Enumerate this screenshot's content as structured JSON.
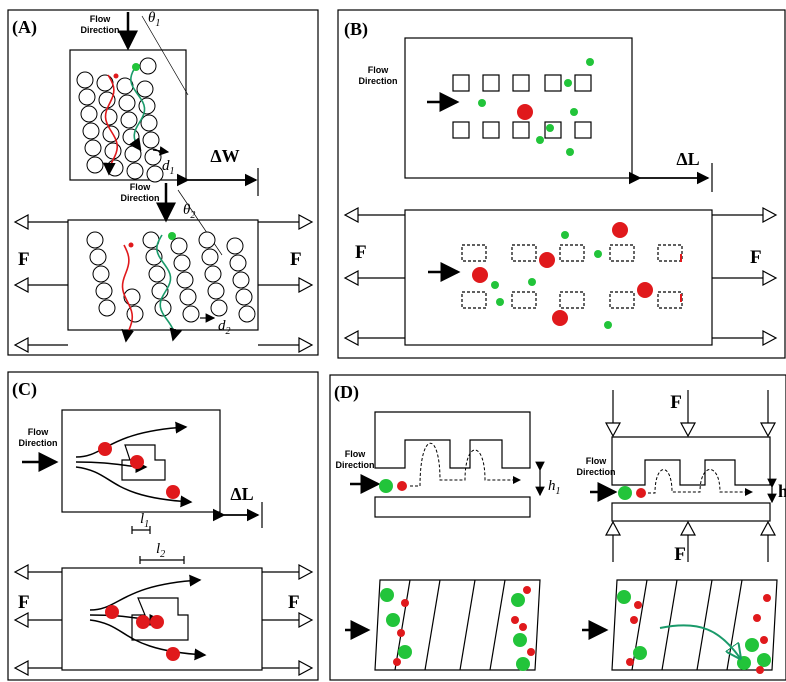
{
  "panel_a": {
    "label": "(A)",
    "flow_top": [
      "Flow",
      "Direction"
    ],
    "flow_mid": [
      "Flow",
      "Direction"
    ],
    "theta1": {
      "symbol": "θ",
      "sub": "1"
    },
    "theta2": {
      "symbol": "θ",
      "sub": "2"
    },
    "d1": {
      "symbol": "d",
      "sub": "1"
    },
    "d2": {
      "symbol": "d",
      "sub": "2"
    },
    "delta_w": "ΔW",
    "force_left": "F",
    "force_right": "F"
  },
  "panel_b": {
    "label": "(B)",
    "flow": [
      "Flow",
      "Direction"
    ],
    "delta_l": "ΔL",
    "force_left": "F",
    "force_right": "F"
  },
  "panel_c": {
    "label": "(C)",
    "flow": [
      "Flow",
      "Direction"
    ],
    "delta_l": "ΔL",
    "l1": {
      "symbol": "l",
      "sub": "1"
    },
    "l2": {
      "symbol": "l",
      "sub": "2"
    },
    "force_left": "F",
    "force_right": "F"
  },
  "panel_d": {
    "label": "(D)",
    "flow_left": [
      "Flow",
      "Direction"
    ],
    "flow_right": [
      "Flow",
      "Direction"
    ],
    "h1": {
      "symbol": "h",
      "sub": "1"
    },
    "h_right": "h",
    "force_top": "F",
    "force_bottom": "F"
  }
}
